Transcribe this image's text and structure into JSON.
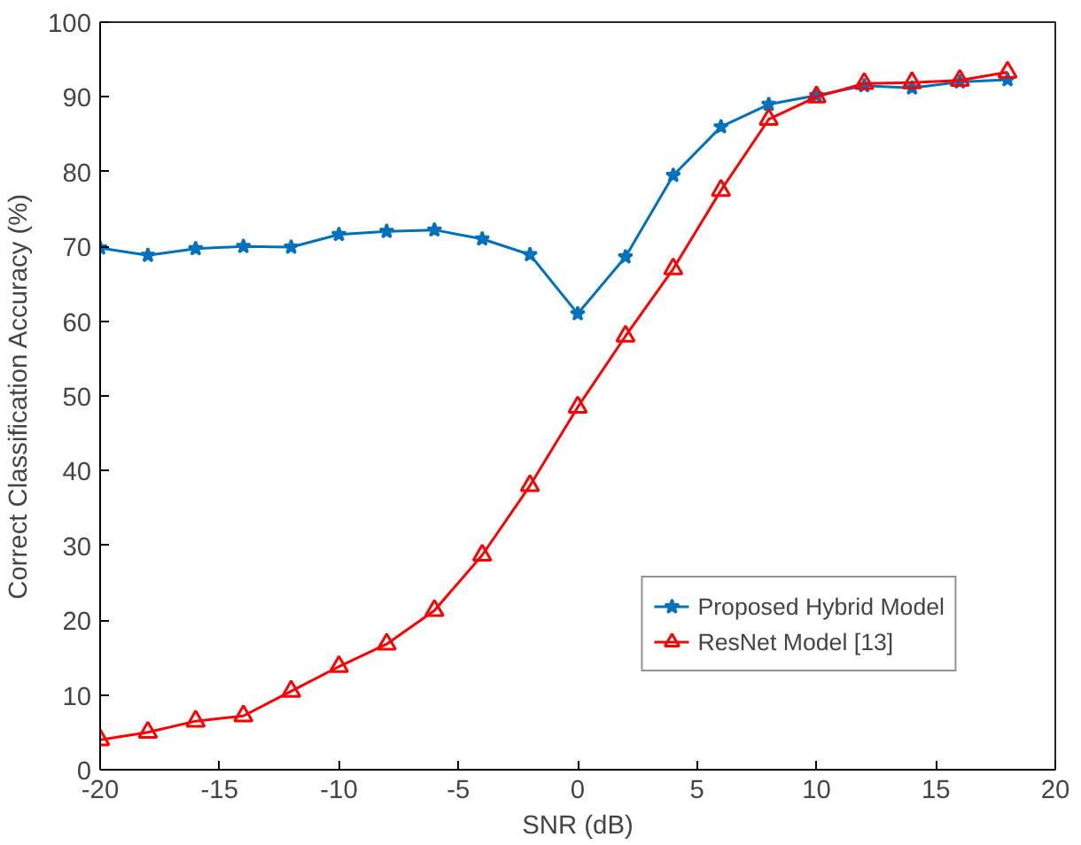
{
  "chart_data": {
    "type": "line",
    "xlabel": "SNR (dB)",
    "ylabel": "Correct Classification Accuracy (%)",
    "x": [
      -20,
      -18,
      -16,
      -14,
      -12,
      -10,
      -8,
      -6,
      -4,
      -2,
      0,
      2,
      4,
      6,
      8,
      10,
      12,
      14,
      16,
      18
    ],
    "series": [
      {
        "name": "Proposed Hybrid Model",
        "color": "#0072bd",
        "marker": "star",
        "values": [
          69.8,
          68.8,
          69.7,
          70,
          69.9,
          71.6,
          72,
          72.2,
          71,
          68.9,
          61,
          68.6,
          79.5,
          86,
          89,
          90.2,
          91.5,
          91.2,
          92,
          92.3
        ]
      },
      {
        "name": "ResNet Model [13]",
        "color": "#ff0000",
        "marker": "triangle",
        "values": [
          4,
          5,
          6.5,
          7.2,
          10.5,
          13.8,
          16.8,
          21.3,
          28.7,
          38,
          48.5,
          58,
          67,
          77.5,
          87,
          90,
          91.8,
          91.9,
          92.2,
          93.3
        ]
      }
    ],
    "xlim": [
      -20,
      20
    ],
    "xticks": [
      -20,
      -15,
      -10,
      -5,
      0,
      5,
      10,
      15,
      20
    ],
    "ylim": [
      0,
      100
    ],
    "yticks": [
      0,
      10,
      20,
      30,
      40,
      50,
      60,
      70,
      80,
      90,
      100
    ],
    "grid": false,
    "legend": "bottom right",
    "line_style": "solid"
  }
}
